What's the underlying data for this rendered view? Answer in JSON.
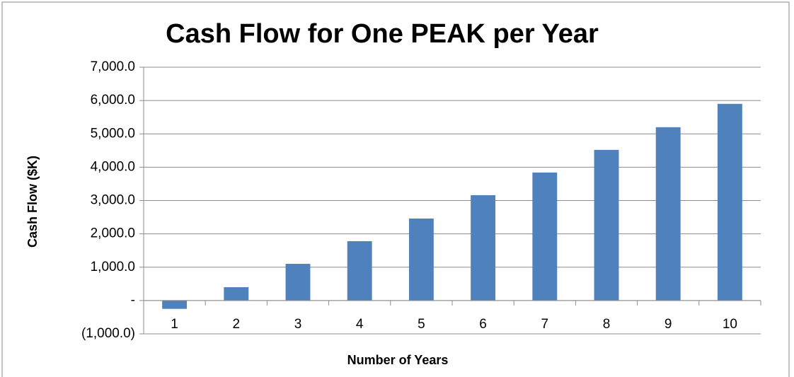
{
  "chart_data": {
    "type": "bar",
    "title": "Cash Flow for One PEAK per Year",
    "x_label": "Number of Years",
    "y_label": "Cash Flow ($K)",
    "categories": [
      "1",
      "2",
      "3",
      "4",
      "5",
      "6",
      "7",
      "8",
      "9",
      "10"
    ],
    "values": [
      -250,
      400,
      1100,
      1780,
      2460,
      3160,
      3840,
      4520,
      5200,
      5900
    ],
    "color": "#4f81bd",
    "ylim": [
      -1000,
      7000
    ],
    "yticks": [
      {
        "value": -1000,
        "label": "(1,000.0)"
      },
      {
        "value": 0,
        "label": "-"
      },
      {
        "value": 1000,
        "label": "1,000.0"
      },
      {
        "value": 2000,
        "label": "2,000.0"
      },
      {
        "value": 3000,
        "label": "3,000.0"
      },
      {
        "value": 4000,
        "label": "4,000.0"
      },
      {
        "value": 5000,
        "label": "5,000.0"
      },
      {
        "value": 6000,
        "label": "6,000.0"
      },
      {
        "value": 7000,
        "label": "7,000.0"
      }
    ],
    "grid": true
  }
}
